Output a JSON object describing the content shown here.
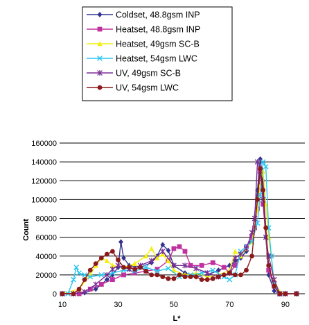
{
  "chart_data": {
    "type": "line",
    "xlabel": "L*",
    "ylabel": "Count",
    "xlim": [
      10,
      97
    ],
    "ylim": [
      0,
      160000
    ],
    "xticks": [
      10,
      30,
      50,
      70,
      90
    ],
    "yticks": [
      0,
      20000,
      40000,
      60000,
      80000,
      100000,
      120000,
      140000,
      160000
    ],
    "ytick_labels": [
      "0",
      "20000",
      "40000",
      "60000",
      "80000",
      "100000",
      "120000",
      "140000",
      "160000"
    ],
    "grid": "horizontal",
    "legend_position": "top",
    "series": [
      {
        "name": "Coldset, 48.8gsm INP",
        "color": "#33338f",
        "marker": "diamond",
        "x": [
          10,
          14,
          18,
          22,
          26,
          28,
          30,
          31,
          32,
          34,
          38,
          42,
          44,
          46,
          48,
          50,
          54,
          58,
          62,
          66,
          70,
          72,
          74,
          76,
          78,
          80,
          81,
          82,
          83,
          84,
          86,
          88,
          90,
          94
        ],
        "y": [
          0,
          0,
          1000,
          5000,
          15000,
          20000,
          28000,
          55000,
          38000,
          30000,
          28000,
          33000,
          40000,
          52000,
          46000,
          30000,
          22000,
          18000,
          20000,
          25000,
          30000,
          35000,
          38000,
          45000,
          60000,
          110000,
          143000,
          120000,
          60000,
          20000,
          3000,
          0,
          0,
          0
        ]
      },
      {
        "name": "Heatset, 48.8gsm INP",
        "color": "#c0319f",
        "marker": "square",
        "x": [
          10,
          16,
          20,
          24,
          28,
          32,
          36,
          40,
          44,
          48,
          50,
          52,
          54,
          56,
          60,
          64,
          68,
          70,
          72,
          74,
          76,
          78,
          79,
          80,
          81,
          82,
          84,
          86,
          88,
          90,
          94
        ],
        "y": [
          0,
          0,
          5000,
          10000,
          15000,
          20000,
          22000,
          24000,
          26000,
          35000,
          48000,
          50000,
          45000,
          30000,
          30000,
          33000,
          28000,
          22000,
          30000,
          40000,
          50000,
          60000,
          70000,
          90000,
          130000,
          95000,
          25000,
          8000,
          0,
          0,
          0
        ]
      },
      {
        "name": "Heatset, 49gsm SC-B",
        "color": "#f2ef0c",
        "marker": "triangle",
        "x": [
          10,
          16,
          20,
          22,
          24,
          26,
          28,
          32,
          36,
          40,
          42,
          44,
          46,
          48,
          50,
          54,
          58,
          62,
          66,
          70,
          72,
          74,
          76,
          78,
          80,
          81,
          82,
          83,
          84,
          86,
          88,
          90,
          94
        ],
        "y": [
          0,
          5000,
          20000,
          30000,
          38000,
          35000,
          30000,
          28000,
          32000,
          40000,
          48000,
          38000,
          42000,
          35000,
          25000,
          20000,
          22000,
          18000,
          20000,
          25000,
          45000,
          40000,
          48000,
          55000,
          90000,
          115000,
          130000,
          95000,
          60000,
          15000,
          2000,
          0,
          0
        ]
      },
      {
        "name": "Heatset, 54gsm LWC",
        "color": "#29c5f0",
        "marker": "x",
        "x": [
          10,
          12,
          14,
          15,
          16,
          18,
          20,
          24,
          28,
          32,
          36,
          40,
          44,
          48,
          52,
          56,
          60,
          64,
          68,
          70,
          72,
          74,
          76,
          78,
          80,
          81,
          82,
          83,
          84,
          85,
          86,
          88,
          90,
          94
        ],
        "y": [
          0,
          0,
          15000,
          28000,
          22000,
          20000,
          18000,
          20000,
          22000,
          25000,
          24000,
          28000,
          24000,
          27000,
          18000,
          20000,
          22000,
          25000,
          18000,
          15000,
          20000,
          45000,
          50000,
          55000,
          75000,
          105000,
          140000,
          135000,
          70000,
          40000,
          10000,
          0,
          0,
          0
        ]
      },
      {
        "name": "UV, 49gsm SC-B",
        "color": "#7a2e96",
        "marker": "star",
        "x": [
          10,
          14,
          18,
          22,
          26,
          28,
          30,
          34,
          38,
          42,
          46,
          50,
          54,
          58,
          62,
          66,
          70,
          72,
          74,
          76,
          78,
          79,
          80,
          81,
          82,
          83,
          84,
          86,
          88,
          90,
          94
        ],
        "y": [
          0,
          0,
          2000,
          10000,
          20000,
          26000,
          30000,
          26000,
          30000,
          35000,
          45000,
          30000,
          30000,
          27000,
          22000,
          18000,
          22000,
          38000,
          42000,
          48000,
          65000,
          80000,
          140000,
          130000,
          100000,
          60000,
          40000,
          15000,
          0,
          0,
          0
        ]
      },
      {
        "name": "UV, 54gsm LWC",
        "color": "#8b1a1a",
        "marker": "circle",
        "x": [
          10,
          14,
          16,
          18,
          20,
          22,
          24,
          26,
          28,
          30,
          32,
          34,
          36,
          38,
          40,
          42,
          44,
          46,
          48,
          50,
          52,
          54,
          56,
          58,
          60,
          62,
          64,
          66,
          68,
          70,
          72,
          74,
          76,
          78,
          80,
          81,
          82,
          83,
          84,
          86,
          88,
          90,
          94
        ],
        "y": [
          0,
          0,
          5000,
          15000,
          25000,
          32000,
          38000,
          42000,
          45000,
          36000,
          28000,
          28000,
          26000,
          28000,
          24000,
          20000,
          20000,
          18000,
          16000,
          16000,
          20000,
          18000,
          18000,
          18000,
          15000,
          15000,
          16000,
          18000,
          20000,
          22000,
          20000,
          20000,
          25000,
          40000,
          100000,
          133000,
          110000,
          70000,
          30000,
          8000,
          0,
          0,
          0
        ]
      }
    ]
  }
}
